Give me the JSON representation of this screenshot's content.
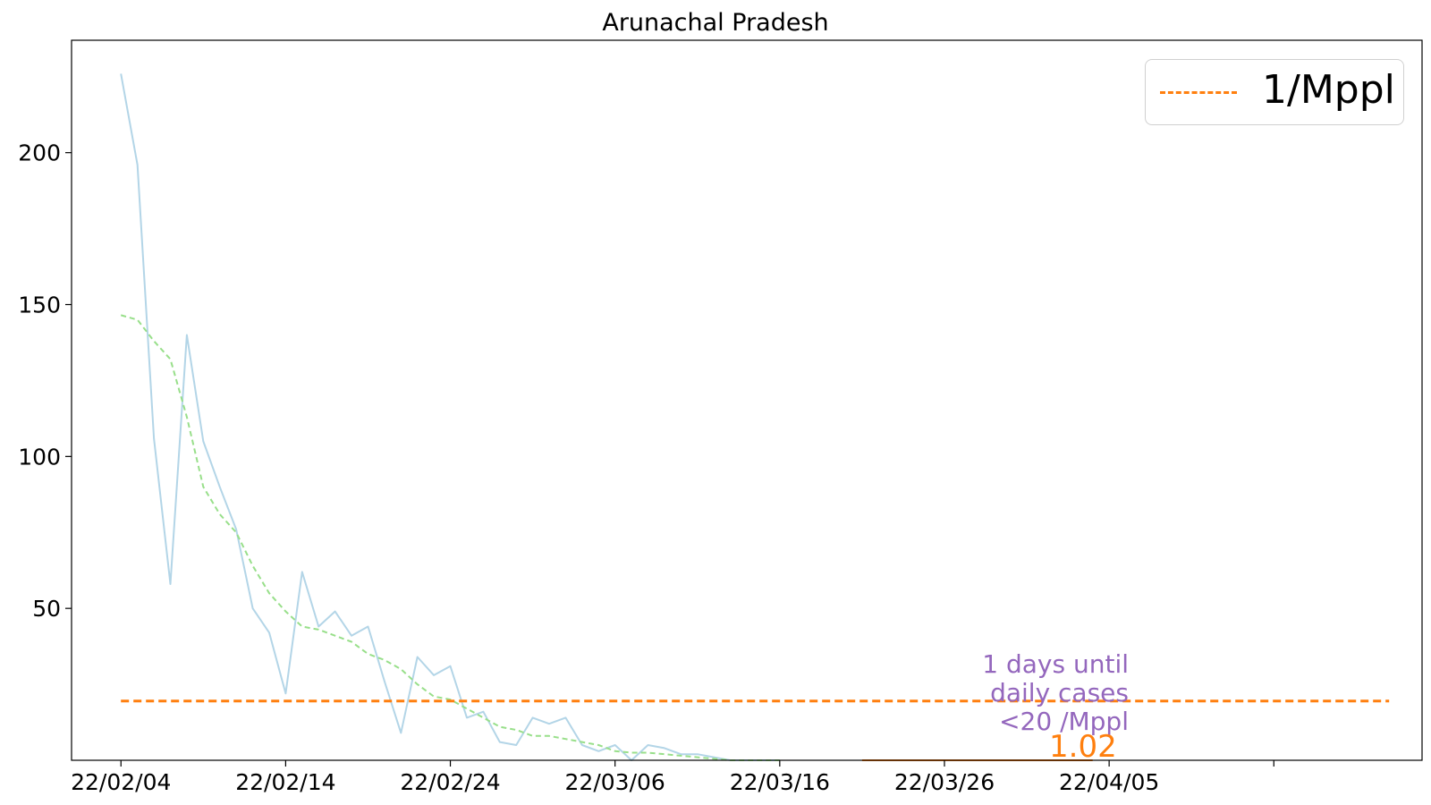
{
  "title": "Arunachal Pradesh",
  "chart_data": {
    "type": "line",
    "title": "Arunachal Pradesh",
    "xlabel": "",
    "ylabel": "",
    "x_tick_labels": [
      "22/02/04",
      "22/02/14",
      "22/02/24",
      "22/03/06",
      "22/03/16",
      "22/03/26",
      "22/04/05",
      ""
    ],
    "y_ticks": [
      50,
      100,
      150,
      200
    ],
    "ylim": [
      0,
      237
    ],
    "xlim": [
      "2022-02-01",
      "2022-04-24"
    ],
    "grid": false,
    "legend_position": "top-right",
    "x": [
      "2022-02-04",
      "2022-02-05",
      "2022-02-06",
      "2022-02-07",
      "2022-02-08",
      "2022-02-09",
      "2022-02-10",
      "2022-02-11",
      "2022-02-12",
      "2022-02-13",
      "2022-02-14",
      "2022-02-15",
      "2022-02-16",
      "2022-02-17",
      "2022-02-18",
      "2022-02-19",
      "2022-02-20",
      "2022-02-21",
      "2022-02-22",
      "2022-02-23",
      "2022-02-24",
      "2022-02-25",
      "2022-02-26",
      "2022-02-27",
      "2022-02-28",
      "2022-03-01",
      "2022-03-02",
      "2022-03-03",
      "2022-03-04",
      "2022-03-05",
      "2022-03-06",
      "2022-03-07",
      "2022-03-08",
      "2022-03-09",
      "2022-03-10",
      "2022-03-11",
      "2022-03-12",
      "2022-03-13",
      "2022-03-14",
      "2022-03-15",
      "2022-03-16"
    ],
    "series": [
      {
        "color": "#a6cee3",
        "style": "solid",
        "values": [
          226,
          196,
          106,
          58,
          140,
          105,
          90,
          76,
          50,
          42,
          22,
          62,
          44,
          49,
          41,
          44,
          26,
          9,
          34,
          28,
          31,
          14,
          16,
          6,
          5,
          14,
          12,
          14,
          5,
          3,
          5,
          0,
          5,
          4,
          2,
          2,
          1,
          0,
          0,
          0,
          0
        ]
      },
      {
        "color": "#98df8a",
        "style": "dashed",
        "values": [
          146.5,
          145,
          138,
          132,
          113,
          90,
          81,
          75,
          64,
          55,
          49,
          44,
          43,
          41,
          39,
          35,
          33,
          30,
          25,
          21,
          20,
          17,
          14,
          11,
          10,
          8,
          8,
          7,
          6,
          5,
          3,
          2.5,
          2.5,
          2,
          1.5,
          1,
          0.5,
          0,
          0,
          0,
          0
        ]
      },
      {
        "name": "1/Mppl",
        "color": "#ff7f0e",
        "style": "dashed",
        "x": [
          "2022-02-04",
          "2022-04-22"
        ],
        "values": [
          19.5,
          19.5
        ]
      },
      {
        "color": "#ff7f0e",
        "style": "solid",
        "x": [
          "2022-03-21",
          "2022-04-04"
        ],
        "values": [
          0,
          0
        ]
      }
    ],
    "annotations": [
      {
        "text": "1 days until\ndaily cases\n<20 /Mppl",
        "color": "#9467bd"
      },
      {
        "text": "1.02",
        "color": "#ff7f0e"
      }
    ]
  }
}
